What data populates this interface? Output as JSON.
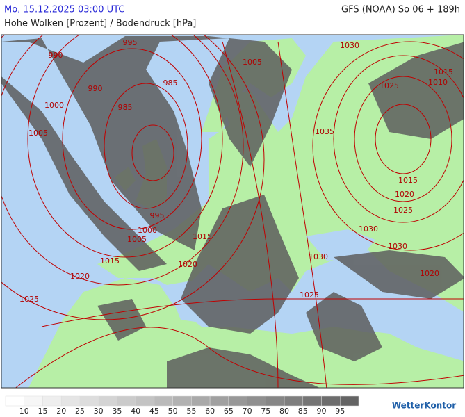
{
  "header": {
    "datetime": "Mo, 15.12.2025 03:00 UTC",
    "model": "GFS (NOAA) So 06 + 189h",
    "title": "Hohe Wolken [Prozent] / Bodendruck [hPa]"
  },
  "isobar_labels": [
    990,
    995,
    990,
    985,
    985,
    1000,
    1005,
    995,
    1000,
    1005,
    1015,
    1020,
    1025,
    1015,
    1020,
    1005,
    1030,
    1025,
    1015,
    1010,
    1035,
    1015,
    1020,
    1025,
    1030,
    1030,
    1030,
    1025,
    1020
  ],
  "legend": {
    "ticks": [
      10,
      15,
      20,
      25,
      30,
      35,
      40,
      45,
      50,
      55,
      60,
      65,
      70,
      75,
      80,
      85,
      90,
      95
    ]
  },
  "logo": "WetterKontor"
}
